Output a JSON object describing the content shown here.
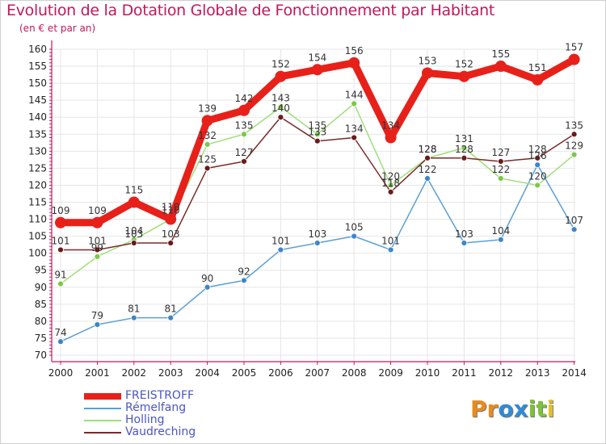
{
  "title": "Evolution de la Dotation Globale de Fonctionnement par Habitant",
  "subtitle": "(en € et par an)",
  "logo_text": "Proxiti",
  "colors": {
    "title": "#c2185b",
    "axis": "#c2185b",
    "grid": "#e6e6e6",
    "legend_text": "#4a54c8",
    "logo": [
      "#e88b1e",
      "#e88b1e",
      "#2e8bd8",
      "#2e8bd8",
      "#7cc23a",
      "#7cc23a",
      "#e8c01e"
    ]
  },
  "chart_data": {
    "type": "line",
    "title": "Evolution de la Dotation Globale de Fonctionnement par Habitant",
    "subtitle": "(en € et par an)",
    "xlabel": "",
    "ylabel": "",
    "x": [
      "2000",
      "2001",
      "2002",
      "2003",
      "2004",
      "2005",
      "2006",
      "2007",
      "2008",
      "2009",
      "2010",
      "2011",
      "2012",
      "2013",
      "2014"
    ],
    "ylim": [
      70,
      160
    ],
    "yticks": [
      70,
      75,
      80,
      85,
      90,
      95,
      100,
      105,
      110,
      115,
      120,
      125,
      130,
      135,
      140,
      145,
      150,
      155,
      160
    ],
    "grid": true,
    "legend_position": "bottom-left",
    "series": [
      {
        "name": "FREISTROFF",
        "color": "#e8201a",
        "dot": "#e8201a",
        "thick": true,
        "values": [
          109,
          109,
          115,
          110,
          139,
          142,
          152,
          154,
          156,
          134,
          153,
          152,
          155,
          151,
          157
        ]
      },
      {
        "name": "Rémelfang",
        "color": "#5a9fd8",
        "dot": "#3d86c8",
        "thick": false,
        "values": [
          74,
          79,
          81,
          81,
          90,
          92,
          101,
          103,
          105,
          101,
          122,
          103,
          104,
          126,
          107
        ]
      },
      {
        "name": "Holling",
        "color": "#9fde7a",
        "dot": "#7cc84a",
        "thick": false,
        "values": [
          91,
          99,
          104,
          110,
          132,
          135,
          143,
          135,
          144,
          120,
          128,
          131,
          122,
          120,
          129
        ]
      },
      {
        "name": "Vaudreching",
        "color": "#7a2a2a",
        "dot": "#6b1a1a",
        "thick": false,
        "values": [
          101,
          101,
          103,
          103,
          125,
          127,
          140,
          133,
          134,
          118,
          128,
          128,
          127,
          128,
          135
        ]
      }
    ]
  }
}
